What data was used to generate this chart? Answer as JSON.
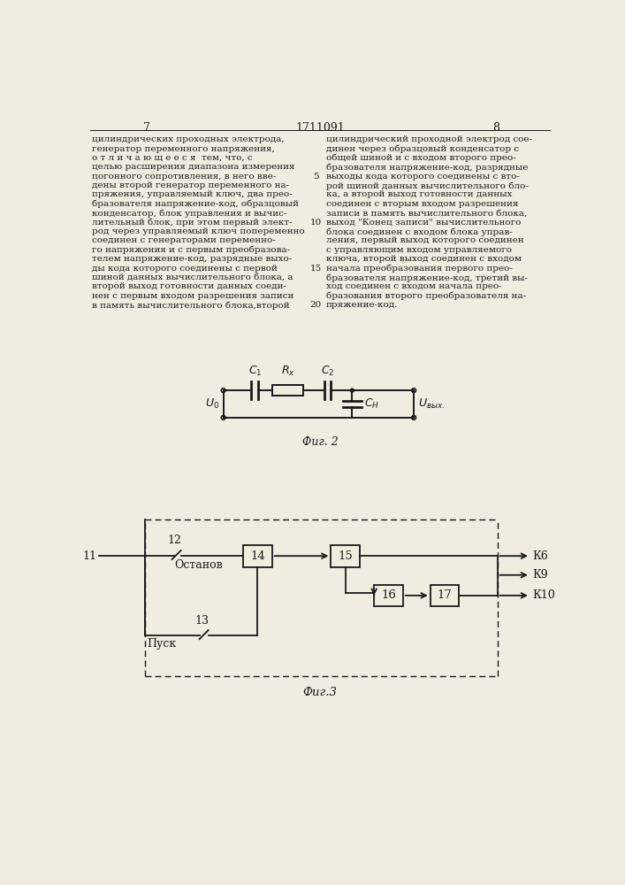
{
  "bg_color": "#f0ece0",
  "text_color": "#1a1a1a",
  "page_num_left": "7",
  "page_num_center": "1711091",
  "page_num_right": "8",
  "left_col_lines": [
    "цилиндрических проходных электрода,",
    "генератор переменного напряжения,",
    "о т л и ч а ю щ е е с я  тем, что, с",
    "целью расширения диапазона измерения",
    "погонного сопротивления, в него вве-",
    "дены второй генератор переменного на-",
    "пряжения, управляемый ключ, два прео-",
    "бразователя напряжение-код, образцовый",
    "конденсатор, блок управления и вычис-",
    "лительный блок, при этом первый элект-",
    "род через управляемый ключ попеременно",
    "соединен с генераторами переменно-",
    "го напряжения и с первым преобразова-",
    "телем напряжение-код, разрядные выхо-",
    "ды кода которого соединены с первой",
    "шиной данных вычислительного блока, а",
    "второй выход готовности данных соеди-",
    "нен с первым входом разрешения записи",
    "в память вычислительного блока,второй"
  ],
  "line_numbers": [
    [
      5,
      4
    ],
    [
      10,
      9
    ],
    [
      15,
      14
    ],
    [
      20,
      18
    ]
  ],
  "right_col_lines": [
    "цилиндрический проходной электрод сое-",
    "динен через образцовый конденсатор с",
    "общей шиной и с входом второго прео-",
    "бразователя напряжение-код, разрядные",
    "выходы кода которого соединены с вто-",
    "рой шиной данных вычислительного бло-",
    "ка, а второй выход готовности данных",
    "соединен с вторым входом разрешения",
    "записи в память вычислительного блока,",
    "выход \"Конец записи\" вычислительного",
    "блока соединен с входом блока управ-",
    "ления, первый выход которого соединен",
    "с управляющим входом управляемого",
    "ключа, второй выход соединен с входом",
    "начала преобразования первого прео-",
    "бразователя напряжение-код, третий вы-",
    "ход соединен с входом начала прео-",
    "бразования второго преобразователя на-",
    "пряжение-код."
  ],
  "fig2_caption": "Фиг. 2",
  "fig3_caption": "Фиг.3",
  "stop_label": "Останов",
  "start_label": "Пуск",
  "k6": "К6",
  "k9": "К9",
  "k10": "К10"
}
